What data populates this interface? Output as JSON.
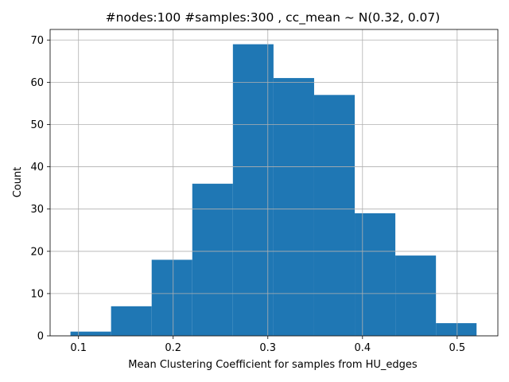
{
  "chart_data": {
    "type": "bar",
    "title": "#nodes:100 #samples:300 , cc_mean ~ N(0.32, 0.07)",
    "xlabel": "Mean Clustering Coefficient for samples from HU_edges",
    "ylabel": "Count",
    "bins": [
      {
        "start": 0.0915,
        "end": 0.1344,
        "count": 1
      },
      {
        "start": 0.1344,
        "end": 0.1773,
        "count": 7
      },
      {
        "start": 0.1773,
        "end": 0.2202,
        "count": 18
      },
      {
        "start": 0.2202,
        "end": 0.2631,
        "count": 36
      },
      {
        "start": 0.2631,
        "end": 0.306,
        "count": 69
      },
      {
        "start": 0.306,
        "end": 0.3489,
        "count": 61
      },
      {
        "start": 0.3489,
        "end": 0.3918,
        "count": 57
      },
      {
        "start": 0.3918,
        "end": 0.4347,
        "count": 29
      },
      {
        "start": 0.4347,
        "end": 0.4776,
        "count": 19
      },
      {
        "start": 0.4776,
        "end": 0.5205,
        "count": 3
      }
    ],
    "xlim": [
      0.07,
      0.543
    ],
    "ylim": [
      0,
      72.5
    ],
    "xticks": [
      0.1,
      0.2,
      0.3,
      0.4,
      0.5
    ],
    "xtick_labels": [
      "0.1",
      "0.2",
      "0.3",
      "0.4",
      "0.5"
    ],
    "yticks": [
      0,
      10,
      20,
      30,
      40,
      50,
      60,
      70
    ],
    "ytick_labels": [
      "0",
      "10",
      "20",
      "30",
      "40",
      "50",
      "60",
      "70"
    ],
    "grid": true,
    "bar_color": "#1f77b4"
  }
}
